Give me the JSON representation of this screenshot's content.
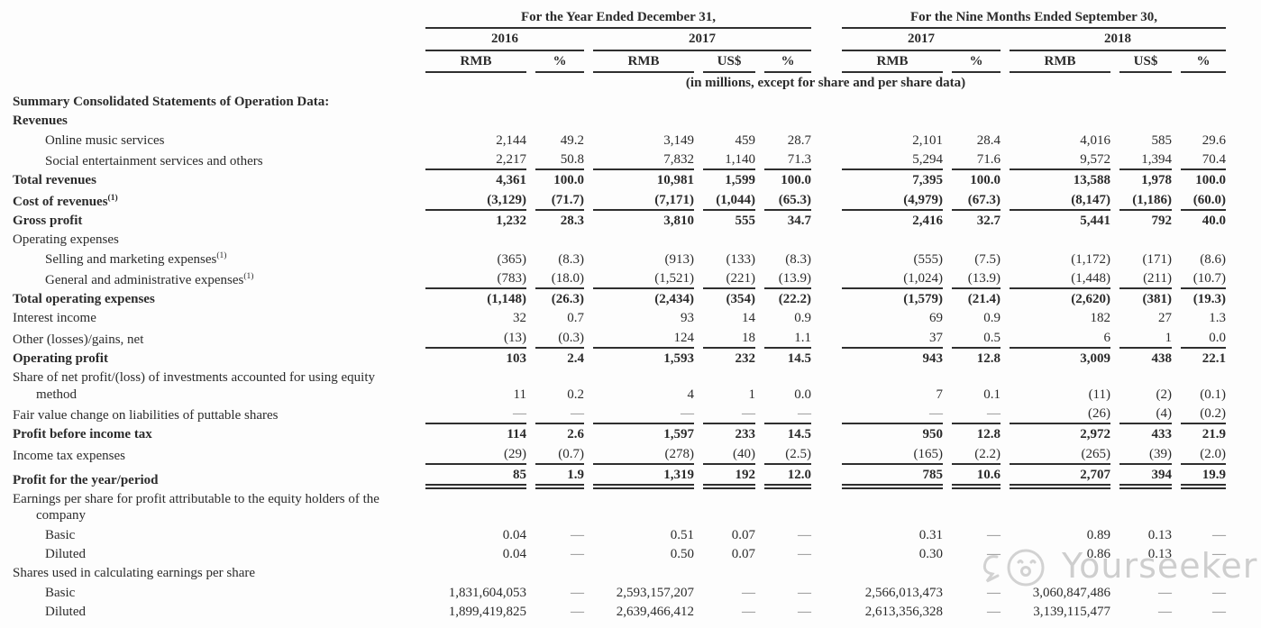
{
  "watermark": {
    "text": "Yourseeker"
  },
  "colors": {
    "text": "#2b2b2b",
    "rule": "#2f2f2f",
    "watermark": "#bdbdbd"
  },
  "table": {
    "col_groups": [
      {
        "label": "For the Year Ended December 31,",
        "span": 5
      },
      {
        "label": "For the Nine Months Ended September 30,",
        "span": 5
      }
    ],
    "year_groups": [
      {
        "label": "2016",
        "span": 2
      },
      {
        "label": "2017",
        "span": 3
      },
      {
        "label": "2017",
        "span": 2
      },
      {
        "label": "2018",
        "span": 3
      }
    ],
    "unit_headers": [
      "RMB",
      "%",
      "RMB",
      "US$",
      "%",
      "RMB",
      "%",
      "RMB",
      "US$",
      "%"
    ],
    "units_note": "(in millions, except for share and per share data)",
    "rows": [
      {
        "label": "Summary Consolidated Statements of Operation Data:",
        "bold": true,
        "indent": 0,
        "values": [],
        "rule": "none"
      },
      {
        "label": "Revenues",
        "bold": true,
        "indent": 0,
        "values": [],
        "rule": "none"
      },
      {
        "label": "Online music services",
        "bold": false,
        "indent": 1,
        "values": [
          "2,144",
          "49.2",
          "3,149",
          "459",
          "28.7",
          "2,101",
          "28.4",
          "4,016",
          "585",
          "29.6"
        ],
        "rule": "none"
      },
      {
        "label": "Social entertainment services and others",
        "bold": false,
        "indent": 1,
        "values": [
          "2,217",
          "50.8",
          "7,832",
          "1,140",
          "71.3",
          "5,294",
          "71.6",
          "9,572",
          "1,394",
          "70.4"
        ],
        "rule": "single"
      },
      {
        "label": "Total revenues",
        "bold": true,
        "indent": 0,
        "values": [
          "4,361",
          "100.0",
          "10,981",
          "1,599",
          "100.0",
          "7,395",
          "100.0",
          "13,588",
          "1,978",
          "100.0"
        ],
        "rule": "none"
      },
      {
        "label": "Cost of revenues",
        "sup": "(1)",
        "bold": true,
        "indent": 0,
        "values": [
          "(3,129)",
          "(71.7)",
          "(7,171)",
          "(1,044)",
          "(65.3)",
          "(4,979)",
          "(67.3)",
          "(8,147)",
          "(1,186)",
          "(60.0)"
        ],
        "rule": "single"
      },
      {
        "label": "Gross profit",
        "bold": true,
        "indent": 0,
        "values": [
          "1,232",
          "28.3",
          "3,810",
          "555",
          "34.7",
          "2,416",
          "32.7",
          "5,441",
          "792",
          "40.0"
        ],
        "rule": "none"
      },
      {
        "label": "Operating expenses",
        "bold": false,
        "indent": 0,
        "values": [],
        "rule": "none"
      },
      {
        "label": "Selling and marketing expenses",
        "sup": "(1)",
        "bold": false,
        "indent": 1,
        "values": [
          "(365)",
          "(8.3)",
          "(913)",
          "(133)",
          "(8.3)",
          "(555)",
          "(7.5)",
          "(1,172)",
          "(171)",
          "(8.6)"
        ],
        "rule": "none"
      },
      {
        "label": "General and administrative expenses",
        "sup": "(1)",
        "bold": false,
        "indent": 1,
        "values": [
          "(783)",
          "(18.0)",
          "(1,521)",
          "(221)",
          "(13.9)",
          "(1,024)",
          "(13.9)",
          "(1,448)",
          "(211)",
          "(10.7)"
        ],
        "rule": "single"
      },
      {
        "label": "Total operating expenses",
        "bold": true,
        "indent": 0,
        "values": [
          "(1,148)",
          "(26.3)",
          "(2,434)",
          "(354)",
          "(22.2)",
          "(1,579)",
          "(21.4)",
          "(2,620)",
          "(381)",
          "(19.3)"
        ],
        "rule": "none"
      },
      {
        "label": "Interest income",
        "bold": false,
        "indent": 0,
        "values": [
          "32",
          "0.7",
          "93",
          "14",
          "0.9",
          "69",
          "0.9",
          "182",
          "27",
          "1.3"
        ],
        "rule": "none"
      },
      {
        "label": "Other (losses)/gains, net",
        "bold": false,
        "indent": 0,
        "values": [
          "(13)",
          "(0.3)",
          "124",
          "18",
          "1.1",
          "37",
          "0.5",
          "6",
          "1",
          "0.0"
        ],
        "rule": "single"
      },
      {
        "label": "Operating profit",
        "bold": true,
        "indent": 0,
        "values": [
          "103",
          "2.4",
          "1,593",
          "232",
          "14.5",
          "943",
          "12.8",
          "3,009",
          "438",
          "22.1"
        ],
        "rule": "none"
      },
      {
        "label": "Share of net profit/(loss) of investments accounted for using equity method",
        "bold": false,
        "indent": 0,
        "hang": true,
        "values": [
          "11",
          "0.2",
          "4",
          "1",
          "0.0",
          "7",
          "0.1",
          "(11)",
          "(2)",
          "(0.1)"
        ],
        "rule": "none"
      },
      {
        "label": "Fair value change on liabilities of puttable shares",
        "bold": false,
        "indent": 0,
        "values": [
          "—",
          "—",
          "—",
          "—",
          "—",
          "—",
          "—",
          "(26)",
          "(4)",
          "(0.2)"
        ],
        "rule": "single"
      },
      {
        "label": "Profit before income tax",
        "bold": true,
        "indent": 0,
        "values": [
          "114",
          "2.6",
          "1,597",
          "233",
          "14.5",
          "950",
          "12.8",
          "2,972",
          "433",
          "21.9"
        ],
        "rule": "none"
      },
      {
        "label": "Income tax expenses",
        "bold": false,
        "indent": 0,
        "values": [
          "(29)",
          "(0.7)",
          "(278)",
          "(40)",
          "(2.5)",
          "(165)",
          "(2.2)",
          "(265)",
          "(39)",
          "(2.0)"
        ],
        "rule": "single"
      },
      {
        "label": "Profit for the year/period",
        "bold": true,
        "indent": 0,
        "values": [
          "85",
          "1.9",
          "1,319",
          "192",
          "12.0",
          "785",
          "10.6",
          "2,707",
          "394",
          "19.9"
        ],
        "rule": "double"
      },
      {
        "label": "Earnings per share for profit attributable to the equity holders of the company",
        "bold": false,
        "indent": 0,
        "hang": true,
        "values": [],
        "rule": "none"
      },
      {
        "label": "Basic",
        "bold": false,
        "indent": 1,
        "values": [
          "0.04",
          "—",
          "0.51",
          "0.07",
          "—",
          "0.31",
          "—",
          "0.89",
          "0.13",
          "—"
        ],
        "rule": "none"
      },
      {
        "label": "Diluted",
        "bold": false,
        "indent": 1,
        "values": [
          "0.04",
          "—",
          "0.50",
          "0.07",
          "—",
          "0.30",
          "—",
          "0.86",
          "0.13",
          "—"
        ],
        "rule": "none"
      },
      {
        "label": "Shares used in calculating earnings per share",
        "bold": false,
        "indent": 0,
        "values": [],
        "rule": "none"
      },
      {
        "label": "Basic",
        "bold": false,
        "indent": 1,
        "values": [
          "1,831,604,053",
          "—",
          "2,593,157,207",
          "—",
          "—",
          "2,566,013,473",
          "—",
          "3,060,847,486",
          "—",
          "—"
        ],
        "rule": "none"
      },
      {
        "label": "Diluted",
        "bold": false,
        "indent": 1,
        "values": [
          "1,899,419,825",
          "—",
          "2,639,466,412",
          "—",
          "—",
          "2,613,356,328",
          "—",
          "3,139,115,477",
          "—",
          "—"
        ],
        "rule": "none"
      }
    ]
  }
}
